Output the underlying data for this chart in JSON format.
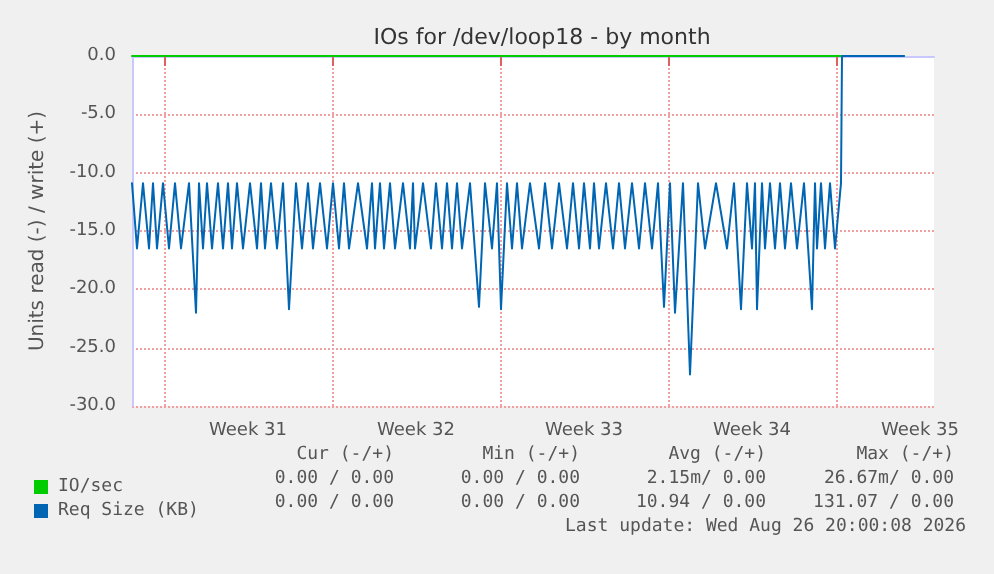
{
  "chart_data": {
    "type": "line",
    "title": "IOs for /dev/loop18 - by month",
    "ylabel": "Units read (-) / write (+)",
    "xlim": [
      "2026-07-25T16:00",
      "2026-08-28T02:00"
    ],
    "xticks": [
      {
        "value": "2026-07-27",
        "label": null
      },
      {
        "value": "2026-07-30T12:00",
        "label": "Week 31"
      },
      {
        "value": "2026-08-03",
        "label": null
      },
      {
        "value": "2026-08-06T12:00",
        "label": "Week 32"
      },
      {
        "value": "2026-08-10",
        "label": null
      },
      {
        "value": "2026-08-13T12:00",
        "label": "Week 33"
      },
      {
        "value": "2026-08-17",
        "label": null
      },
      {
        "value": "2026-08-20T12:00",
        "label": "Week 34"
      },
      {
        "value": "2026-08-24",
        "label": null
      },
      {
        "value": "2026-08-27T12:00",
        "label": "Week 35"
      }
    ],
    "ylim": [
      -30,
      0
    ],
    "yticks": [
      {
        "value": -30,
        "label": "-30.0"
      },
      {
        "value": -25,
        "label": "-25.0"
      },
      {
        "value": -20,
        "label": "-20.0"
      },
      {
        "value": -15,
        "label": "-15.0"
      },
      {
        "value": -10,
        "label": "-10.0"
      },
      {
        "value": -5,
        "label": "-5.0"
      },
      {
        "value": 0,
        "label": "0.0"
      }
    ],
    "grid": true,
    "legend": "bottom left",
    "marker": "none",
    "line_style": "solid",
    "series": [
      {
        "name": "IO/sec",
        "color": "#00cc00",
        "x": [
          "2026-07-25T16:00",
          "2026-08-26T20:00"
        ],
        "values": [
          0,
          0
        ]
      },
      {
        "name": "Req Size (KB)",
        "color": "#0066b3",
        "x": [
          "2026-07-25T16:00",
          "2026-07-25T21:00",
          "2026-07-26T03:00",
          "2026-07-26T09:00",
          "2026-07-26T13:00",
          "2026-07-26T17:00",
          "2026-07-26T23:00",
          "2026-07-27T05:00",
          "2026-07-27T11:00",
          "2026-07-27T17:00",
          "2026-07-28T01:00",
          "2026-07-28T08:00",
          "2026-07-28T11:00",
          "2026-07-28T15:00",
          "2026-07-28T19:00",
          "2026-07-29T00:00",
          "2026-07-29T06:00",
          "2026-07-29T11:00",
          "2026-07-29T16:00",
          "2026-07-29T20:00",
          "2026-07-30T01:00",
          "2026-07-30T07:00",
          "2026-07-30T14:00",
          "2026-07-30T21:00",
          "2026-07-31T01:00",
          "2026-07-31T05:00",
          "2026-07-31T11:00",
          "2026-07-31T17:00",
          "2026-07-31T23:00",
          "2026-08-01T05:00",
          "2026-08-01T12:00",
          "2026-08-01T18:00",
          "2026-08-02T00:00",
          "2026-08-02T05:00",
          "2026-08-02T12:00",
          "2026-08-02T19:00",
          "2026-08-03T01:00",
          "2026-08-03T07:00",
          "2026-08-03T12:00",
          "2026-08-03T17:00",
          "2026-08-04T02:00",
          "2026-08-04T11:00",
          "2026-08-04T16:00",
          "2026-08-04T19:00",
          "2026-08-05T00:00",
          "2026-08-05T04:00",
          "2026-08-05T10:00",
          "2026-08-05T15:00",
          "2026-08-05T23:00",
          "2026-08-06T06:00",
          "2026-08-06T09:00",
          "2026-08-06T11:00",
          "2026-08-06T19:00",
          "2026-08-07T03:00",
          "2026-08-07T08:00",
          "2026-08-07T14:00",
          "2026-08-07T19:00",
          "2026-08-08T00:00",
          "2026-08-08T05:00",
          "2026-08-08T10:00",
          "2026-08-08T18:00",
          "2026-08-09T03:00",
          "2026-08-09T09:00",
          "2026-08-09T16:00",
          "2026-08-09T21:00",
          "2026-08-10T01:00",
          "2026-08-10T07:00",
          "2026-08-10T12:00",
          "2026-08-10T17:00",
          "2026-08-10T22:00",
          "2026-08-11T06:00",
          "2026-08-11T15:00",
          "2026-08-11T21:00",
          "2026-08-12T04:00",
          "2026-08-12T11:00",
          "2026-08-12T19:00",
          "2026-08-13T01:00",
          "2026-08-13T07:00",
          "2026-08-13T12:00",
          "2026-08-13T18:00",
          "2026-08-13T22:00",
          "2026-08-14T03:00",
          "2026-08-14T10:00",
          "2026-08-14T17:00",
          "2026-08-14T23:00",
          "2026-08-15T05:00",
          "2026-08-15T12:00",
          "2026-08-15T19:00",
          "2026-08-16T01:00",
          "2026-08-16T08:00",
          "2026-08-16T14:00",
          "2026-08-16T20:00",
          "2026-08-17T02:00",
          "2026-08-17T07:00",
          "2026-08-17T15:00",
          "2026-08-17T22:00",
          "2026-08-18T06:00",
          "2026-08-18T13:00",
          "2026-08-19T00:00",
          "2026-08-19T11:00",
          "2026-08-19T18:00",
          "2026-08-20T01:00",
          "2026-08-20T07:00",
          "2026-08-20T12:00",
          "2026-08-20T15:00",
          "2026-08-20T17:00",
          "2026-08-20T22:00",
          "2026-08-21T01:00",
          "2026-08-21T06:00",
          "2026-08-21T11:00",
          "2026-08-21T16:00",
          "2026-08-21T21:00",
          "2026-08-22T03:00",
          "2026-08-22T09:00",
          "2026-08-22T16:00",
          "2026-08-23T00:00",
          "2026-08-23T03:00",
          "2026-08-23T05:00",
          "2026-08-23T09:00",
          "2026-08-23T13:00",
          "2026-08-23T18:00",
          "2026-08-23T23:00",
          "2026-08-24T05:00",
          "2026-08-24T06:00",
          "2026-08-26T20:00"
        ],
        "values": [
          -10.9,
          -16.5,
          -10.9,
          -16.5,
          -10.9,
          -16.5,
          -10.9,
          -16.5,
          -10.9,
          -16.5,
          -10.9,
          -22,
          -10.9,
          -16.5,
          -10.9,
          -16.5,
          -10.9,
          -16.5,
          -10.9,
          -16.5,
          -10.9,
          -16.5,
          -10.9,
          -16.5,
          -10.9,
          -16.5,
          -10.9,
          -16.5,
          -10.9,
          -21.7,
          -10.9,
          -16.5,
          -10.9,
          -16.5,
          -10.9,
          -16.5,
          -10.9,
          -16.5,
          -10.9,
          -16.5,
          -10.9,
          -16.5,
          -10.9,
          -16.5,
          -10.9,
          -16.5,
          -10.9,
          -16.5,
          -10.9,
          -16.5,
          -10.9,
          -16.5,
          -10.9,
          -16.5,
          -10.9,
          -16.5,
          -10.9,
          -16.5,
          -10.9,
          -16.5,
          -10.9,
          -21.5,
          -10.9,
          -16.5,
          -10.9,
          -21.7,
          -10.9,
          -16.5,
          -10.9,
          -16.5,
          -10.9,
          -16.5,
          -10.9,
          -16.5,
          -10.9,
          -16.5,
          -10.9,
          -16.5,
          -10.9,
          -16.5,
          -10.9,
          -16.5,
          -10.9,
          -16.5,
          -10.9,
          -16.5,
          -10.9,
          -16.5,
          -10.9,
          -16.5,
          -10.9,
          -21.5,
          -10.9,
          -22,
          -10.9,
          -27.3,
          -10.9,
          -16.5,
          -10.9,
          -16.5,
          -10.9,
          -21.7,
          -10.9,
          -16.5,
          -10.9,
          -21.7,
          -10.9,
          -16.5,
          -10.9,
          -16.5,
          -10.9,
          -16.5,
          -10.9,
          -16.5,
          -10.9,
          -21.7,
          -10.9,
          -16.5,
          -10.9,
          -16.5,
          -10.9,
          -16.5,
          -10.9,
          0,
          0
        ]
      }
    ],
    "annotations": [
      "Cur (-/+)",
      "Min (-/+)",
      "Avg (-/+)",
      "Max (-/+)",
      "0.00 / 0.00",
      "0.00 / 0.00",
      "2.15m/ 0.00",
      "26.67m/ 0.00",
      "0.00 / 0.00",
      "0.00 / 0.00",
      "10.94 / 0.00",
      "131.07 / 0.00",
      "Last update: Wed Aug 26 20:00:08 2026"
    ]
  }
}
